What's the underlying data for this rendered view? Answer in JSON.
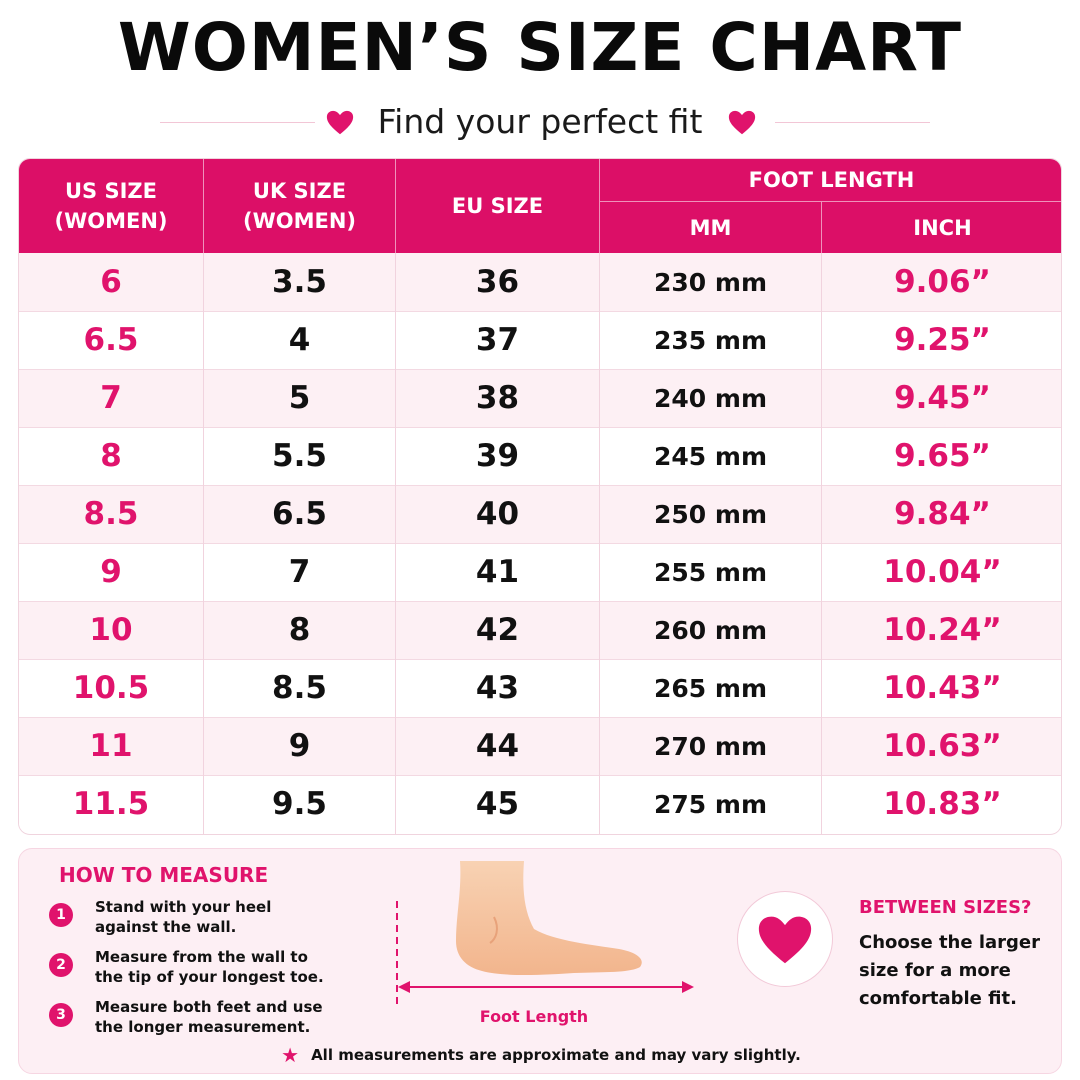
{
  "title": "WOMEN’S SIZE CHART",
  "subtitle": "Find your perfect fit",
  "headers": {
    "us": [
      "US SIZE",
      "(WOMEN)"
    ],
    "uk": [
      "UK SIZE",
      "(WOMEN)"
    ],
    "eu": "EU SIZE",
    "foot_length": "FOOT LENGTH",
    "mm": "MM",
    "inch": "INCH"
  },
  "rows": [
    {
      "us": "6",
      "uk": "3.5",
      "eu": "36",
      "mm": "230 mm",
      "inch": "9.06”"
    },
    {
      "us": "6.5",
      "uk": "4",
      "eu": "37",
      "mm": "235 mm",
      "inch": "9.25”"
    },
    {
      "us": "7",
      "uk": "5",
      "eu": "38",
      "mm": "240 mm",
      "inch": "9.45”"
    },
    {
      "us": "8",
      "uk": "5.5",
      "eu": "39",
      "mm": "245 mm",
      "inch": "9.65”"
    },
    {
      "us": "8.5",
      "uk": "6.5",
      "eu": "40",
      "mm": "250 mm",
      "inch": "9.84”"
    },
    {
      "us": "9",
      "uk": "7",
      "eu": "41",
      "mm": "255 mm",
      "inch": "10.04”"
    },
    {
      "us": "10",
      "uk": "8",
      "eu": "42",
      "mm": "260 mm",
      "inch": "10.24”"
    },
    {
      "us": "10.5",
      "uk": "8.5",
      "eu": "43",
      "mm": "265 mm",
      "inch": "10.43”"
    },
    {
      "us": "11",
      "uk": "9",
      "eu": "44",
      "mm": "270 mm",
      "inch": "10.63”"
    },
    {
      "us": "11.5",
      "uk": "9.5",
      "eu": "45",
      "mm": "275 mm",
      "inch": "10.83”"
    }
  ],
  "how_to_measure": {
    "title": "HOW TO MEASURE",
    "steps": [
      {
        "num": "1",
        "line1": "Stand with your heel",
        "line2": "against the wall."
      },
      {
        "num": "2",
        "line1": "Measure from the wall to",
        "line2": "the tip of your longest toe."
      },
      {
        "num": "3",
        "line1": "Measure both feet and use",
        "line2": "the longer measurement."
      }
    ]
  },
  "foot_label": "Foot Length",
  "between_sizes": {
    "title": "BETWEEN SIZES?",
    "lines": [
      "Choose the larger",
      "size for a more",
      "comfortable fit."
    ]
  },
  "note": "All measurements are approximate and may vary slightly.",
  "icons": {
    "heart": "heart-icon",
    "star": "star-icon",
    "foot": "foot-illustration"
  },
  "colors": {
    "accent": "#e0136c",
    "header_bg": "#dc0f67",
    "alt_row": "#fdf0f4",
    "panel_bg": "#fdeff4"
  }
}
